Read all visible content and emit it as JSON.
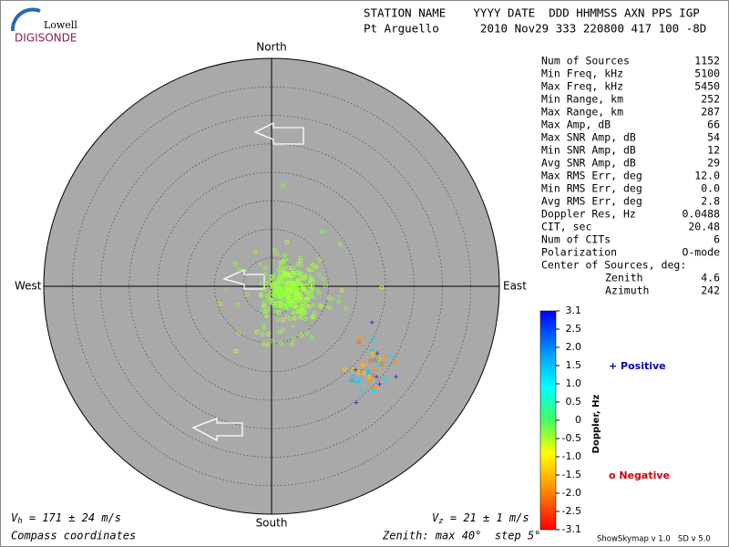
{
  "header": {
    "logo_top": "Lowell",
    "logo_bottom": "DIGISONDE",
    "line1": "STATION NAME    YYYY DATE  DDD HHMMSS AXN PPS IGP",
    "line2": "Pt Arguello      2010 Nov29 333 220800 417 100 -8D"
  },
  "compass": {
    "north": "North",
    "south": "South",
    "east": "East",
    "west": "West"
  },
  "stats": [
    [
      "Num of Sources",
      "1152"
    ],
    [
      "Min Freq, kHz",
      "5100"
    ],
    [
      "Max Freq, kHz",
      "5450"
    ],
    [
      "Min Range, km",
      "252"
    ],
    [
      "Max Range, km",
      "287"
    ],
    [
      "Max Amp, dB",
      "66"
    ],
    [
      "Max SNR Amp, dB",
      "54"
    ],
    [
      "Min SNR Amp, dB",
      "12"
    ],
    [
      "Avg SNR Amp, dB",
      "29"
    ],
    [
      "Max RMS Err, deg",
      "12.0"
    ],
    [
      "Min RMS Err, deg",
      "0.0"
    ],
    [
      "Avg RMS Err, deg",
      "2.8"
    ],
    [
      "Doppler Res, Hz",
      "0.0488"
    ],
    [
      "CIT, sec",
      "20.48"
    ],
    [
      "Num of CITs",
      "6"
    ],
    [
      "Polarization",
      "O-mode"
    ]
  ],
  "center": {
    "title": "Center of Sources, deg:",
    "zenith_label": "Zenith",
    "zenith": "4.6",
    "azimuth_label": "Azimuth",
    "azimuth": "242"
  },
  "colorbar": {
    "title": "Doppler, Hz",
    "labels": [
      "3.1",
      "2.5",
      "2.0",
      "1.5",
      "1.0",
      "0.5",
      "0",
      "-0.5",
      "-1.0",
      "-1.5",
      "-2.0",
      "-2.5",
      "-3.1"
    ],
    "positive": "+ Positive",
    "negative": "o Negative"
  },
  "footer": {
    "vh": [
      "V",
      "h",
      " = 171 ± 24 m/s"
    ],
    "vz": [
      "V",
      "z",
      " = 21 ± 1 m/s"
    ],
    "coords": "Compass coordinates",
    "zenith": "Zenith: max 40°  step 5°",
    "version": "ShowSkymap v 1.0   SD v 5.0"
  }
}
